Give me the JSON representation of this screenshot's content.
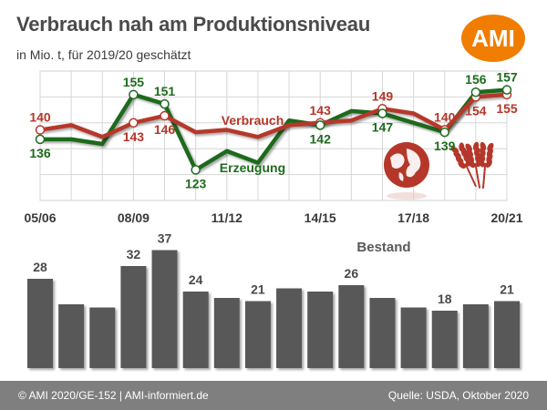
{
  "header": {
    "title": "Verbrauch nah am Produktionsniveau",
    "subtitle": "in Mio. t, für 2019/20 geschätzt",
    "logo_text": "AMI"
  },
  "footer": {
    "left": "© AMI 2020/GE-152 | AMI-informiert.de",
    "right": "Quelle: USDA, Oktober 2020"
  },
  "icons": [
    "globe-icon",
    "wheat-icon"
  ],
  "colors": {
    "production": "#1e6b1e",
    "consumption": "#b5372a",
    "stock": "#595959",
    "logo": "#f07d00",
    "footer": "#7f7f7f"
  },
  "chart_data": [
    {
      "type": "line",
      "x": [
        "05/06",
        "06/07",
        "07/08",
        "08/09",
        "09/10",
        "10/11",
        "11/12",
        "12/13",
        "13/14",
        "14/15",
        "15/16",
        "16/17",
        "17/18",
        "18/19",
        "19/20",
        "20/21"
      ],
      "tick_labels": [
        "05/06",
        "08/09",
        "11/12",
        "14/15",
        "17/18",
        "20/21"
      ],
      "ylim": [
        110,
        165
      ],
      "grid": true,
      "series": [
        {
          "name": "Verbrauch",
          "color": "#b5372a",
          "values": [
            140,
            142,
            137,
            143,
            146,
            139,
            140,
            137,
            142,
            143,
            144,
            149,
            147,
            140,
            154,
            155
          ],
          "labels": {
            "0": "140",
            "3": "143",
            "4": "146",
            "9": "143",
            "11": "149",
            "13": "140",
            "14": "154",
            "15": "155"
          }
        },
        {
          "name": "Erzeugung",
          "color": "#1e6b1e",
          "values": [
            136,
            136,
            134,
            155,
            151,
            123,
            131,
            126,
            144,
            142,
            148,
            147,
            143,
            139,
            156,
            157
          ],
          "labels": {
            "0": "136",
            "3": "155",
            "4": "151",
            "5": "123",
            "9": "142",
            "11": "147",
            "13": "139",
            "14": "156",
            "15": "157"
          }
        }
      ]
    },
    {
      "type": "bar",
      "title": "Bestand",
      "categories": [
        "05/06",
        "06/07",
        "07/08",
        "08/09",
        "09/10",
        "10/11",
        "11/12",
        "12/13",
        "13/14",
        "14/15",
        "15/16",
        "16/17",
        "17/18",
        "18/19",
        "19/20",
        "20/21"
      ],
      "values": [
        28,
        20,
        19,
        32,
        37,
        24,
        22,
        21,
        25,
        24,
        26,
        22,
        19,
        18,
        20,
        21
      ],
      "labels": {
        "0": "28",
        "3": "32",
        "4": "37",
        "5": "24",
        "7": "21",
        "10": "26",
        "13": "18",
        "15": "21"
      },
      "ylim": [
        0,
        40
      ],
      "color": "#595959"
    }
  ]
}
